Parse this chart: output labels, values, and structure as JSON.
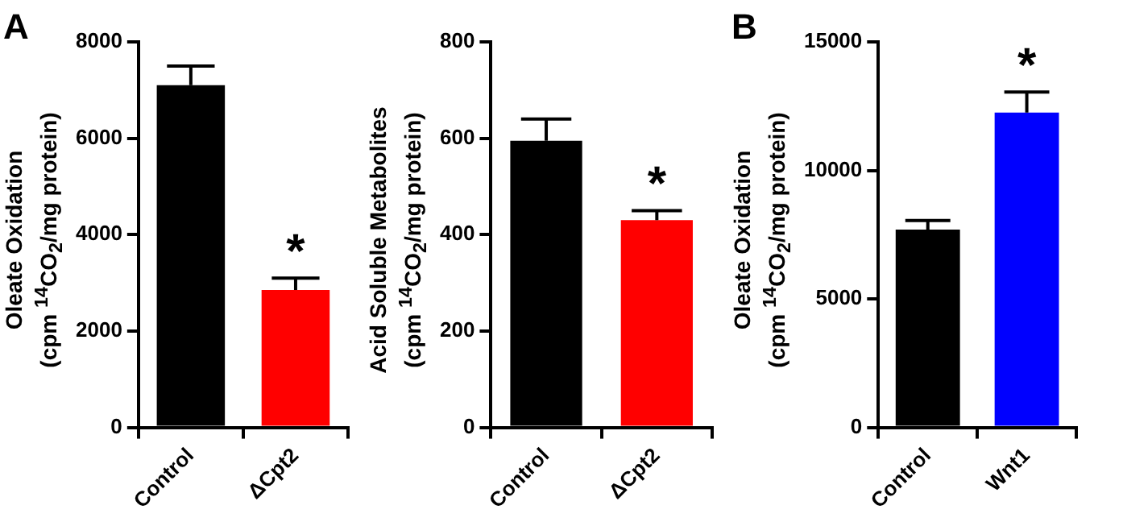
{
  "chart_data": [
    {
      "type": "bar",
      "ylabel": "Oleate Oxidation\n(cpm $^{14}$CO$_{2}$/mg protein)",
      "categories": [
        "Control",
        "ΔCpt2"
      ],
      "values": [
        7100,
        2850
      ],
      "colors": [
        "#000000",
        "#ff0000"
      ],
      "errors": [
        [
          7100,
          7500
        ],
        [
          2850,
          3100
        ]
      ],
      "ylim": [
        0,
        8000
      ],
      "yticks": [
        0,
        2000,
        4000,
        6000,
        8000
      ],
      "legend": false,
      "annotations": [
        "A",
        {
          "text": "*",
          "x": "ΔCpt2",
          "y": 3100
        }
      ]
    },
    {
      "type": "bar",
      "ylabel": "Acid Soluble Metabolites\n(cpm $^{14}$CO$_{2}$/mg protein)",
      "categories": [
        "Control",
        "ΔCpt2"
      ],
      "values": [
        595,
        430
      ],
      "colors": [
        "#000000",
        "#ff0000"
      ],
      "errors": [
        [
          595,
          640
        ],
        [
          430,
          450
        ]
      ],
      "ylim": [
        0,
        800
      ],
      "yticks": [
        0,
        200,
        400,
        600,
        800
      ],
      "legend": false,
      "annotations": [
        {
          "text": "*",
          "x": "ΔCpt2",
          "y": 450
        }
      ]
    },
    {
      "type": "bar",
      "ylabel": "Oleate Oxidation\n(cpm $^{14}$CO$_{2}$/mg protein)",
      "categories": [
        "Control",
        "Wnt1"
      ],
      "values": [
        7700,
        12250
      ],
      "colors": [
        "#000000",
        "#0000ff"
      ],
      "errors": [
        [
          7700,
          8050
        ],
        [
          12250,
          13050
        ]
      ],
      "ylim": [
        0,
        15000
      ],
      "yticks": [
        0,
        5000,
        10000,
        15000
      ],
      "legend": false,
      "annotations": [
        "B",
        {
          "text": "*",
          "x": "Wnt1",
          "y": 13050
        }
      ]
    }
  ]
}
